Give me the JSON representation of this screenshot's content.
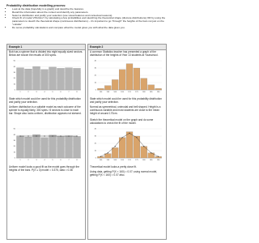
{
  "header": {
    "title": "Probability distribution modelling process:",
    "bullets": [
      "Look at the data (hopefully in a graph) and describe the features.",
      "Recall the information about the context and identify any parameters.",
      "Select a distribution and justify your selection (use visual features and contextual reasons).",
      "Check fit of model VISUALLY by calculating a few probabilities and sketching the theoretical shape (discrete distributions) OR by using the parameters to sketch the theoretical shape (continuous distributions) – it's important to go \"through\" the heights of the bars not just on the \"outside\"",
      "Do some probability calculations and compare what the model gives you with what the data gives you."
    ]
  },
  "example_1": {
    "heading": "Example 1",
    "intro": "Bob has a spinner that is divided into eight equally sized sectors. Below are shown the results of 300 spins.",
    "chart_1": {
      "type": "bar",
      "categories": [
        "1",
        "2",
        "3",
        "4",
        "5",
        "6",
        "7",
        "8"
      ],
      "values": [
        38,
        36,
        40,
        35,
        39,
        37,
        38,
        37
      ],
      "color": "#b5b5b5",
      "ylim": [
        0,
        50
      ],
      "yticks": [
        0,
        10,
        20,
        30,
        40,
        50
      ]
    },
    "question": "State which model could be used for this probability distribution and justify your selection.",
    "answer": "Uniform distribution is a suitable model as each outcome of the spinner is equally likely, 300 spins / 8 sectors is close to each bar. Shape also looks uniform, distribution appears not skewed.",
    "chart_2": {
      "type": "bar",
      "categories": [
        "1",
        "2",
        "3",
        "4",
        "5",
        "6",
        "7",
        "8"
      ],
      "series": [
        {
          "name": "Observed",
          "color": "#b5b5b5",
          "values": [
            38,
            36,
            40,
            35,
            39,
            37,
            38,
            37
          ]
        },
        {
          "name": "Model",
          "color": "#333333",
          "values": [
            37.5,
            37.5,
            37.5,
            37.5,
            37.5,
            37.5,
            37.5,
            37.5
          ]
        }
      ],
      "ylim": [
        0,
        50
      ],
      "yticks": [
        0,
        10,
        20,
        30,
        40,
        50
      ]
    },
    "conclusion": "Uniform model looks a good fit as the model goes through the heights of the bars. P(X ≤ 3) model = 0.375, data = 0.38"
  },
  "example_2": {
    "heading": "Example 2",
    "intro": "A common Statistics teacher has presented a graph of the distribution of the heights of Year 13 students at Yourschool.",
    "chart_1": {
      "type": "bar",
      "categories": [
        "150",
        "155",
        "160",
        "165",
        "170",
        "175",
        "180",
        "185",
        "190"
      ],
      "values": [
        2,
        6,
        14,
        28,
        36,
        30,
        16,
        7,
        2
      ],
      "color": "#d9a46b",
      "ylim": [
        0,
        40
      ],
      "yticks": [
        0,
        10,
        20,
        30,
        40
      ]
    },
    "question": "State which model could be used for this probability distribution and justify your selection.",
    "answer": "Normal as symmetrical, unimodal and bell shaped. Height is a continuous variable and most students are close to the mean height of around 170cm.",
    "task": "Sketch the theoretical model on the graph and do some calculations to check the fit of the model.",
    "chart_2": {
      "type": "bar",
      "categories": [
        "150",
        "155",
        "160",
        "165",
        "170",
        "175",
        "180",
        "185",
        "190"
      ],
      "series": [
        {
          "name": "Observed",
          "color": "#d9a46b",
          "values": [
            2,
            6,
            14,
            28,
            36,
            30,
            16,
            7,
            2
          ]
        },
        {
          "name": "Model",
          "color": "#333333",
          "values": [
            2,
            7,
            16,
            28,
            34,
            28,
            16,
            7,
            2
          ]
        }
      ],
      "ylim": [
        0,
        40
      ],
      "yticks": [
        0,
        10,
        20,
        30,
        40
      ]
    },
    "conclusion": "Theoretical model looks a pretty close fit.",
    "calculation": "Using data, getting P(X < 160) = 0.07; using normal model, getting P(X < 160) = 0.07 also."
  }
}
